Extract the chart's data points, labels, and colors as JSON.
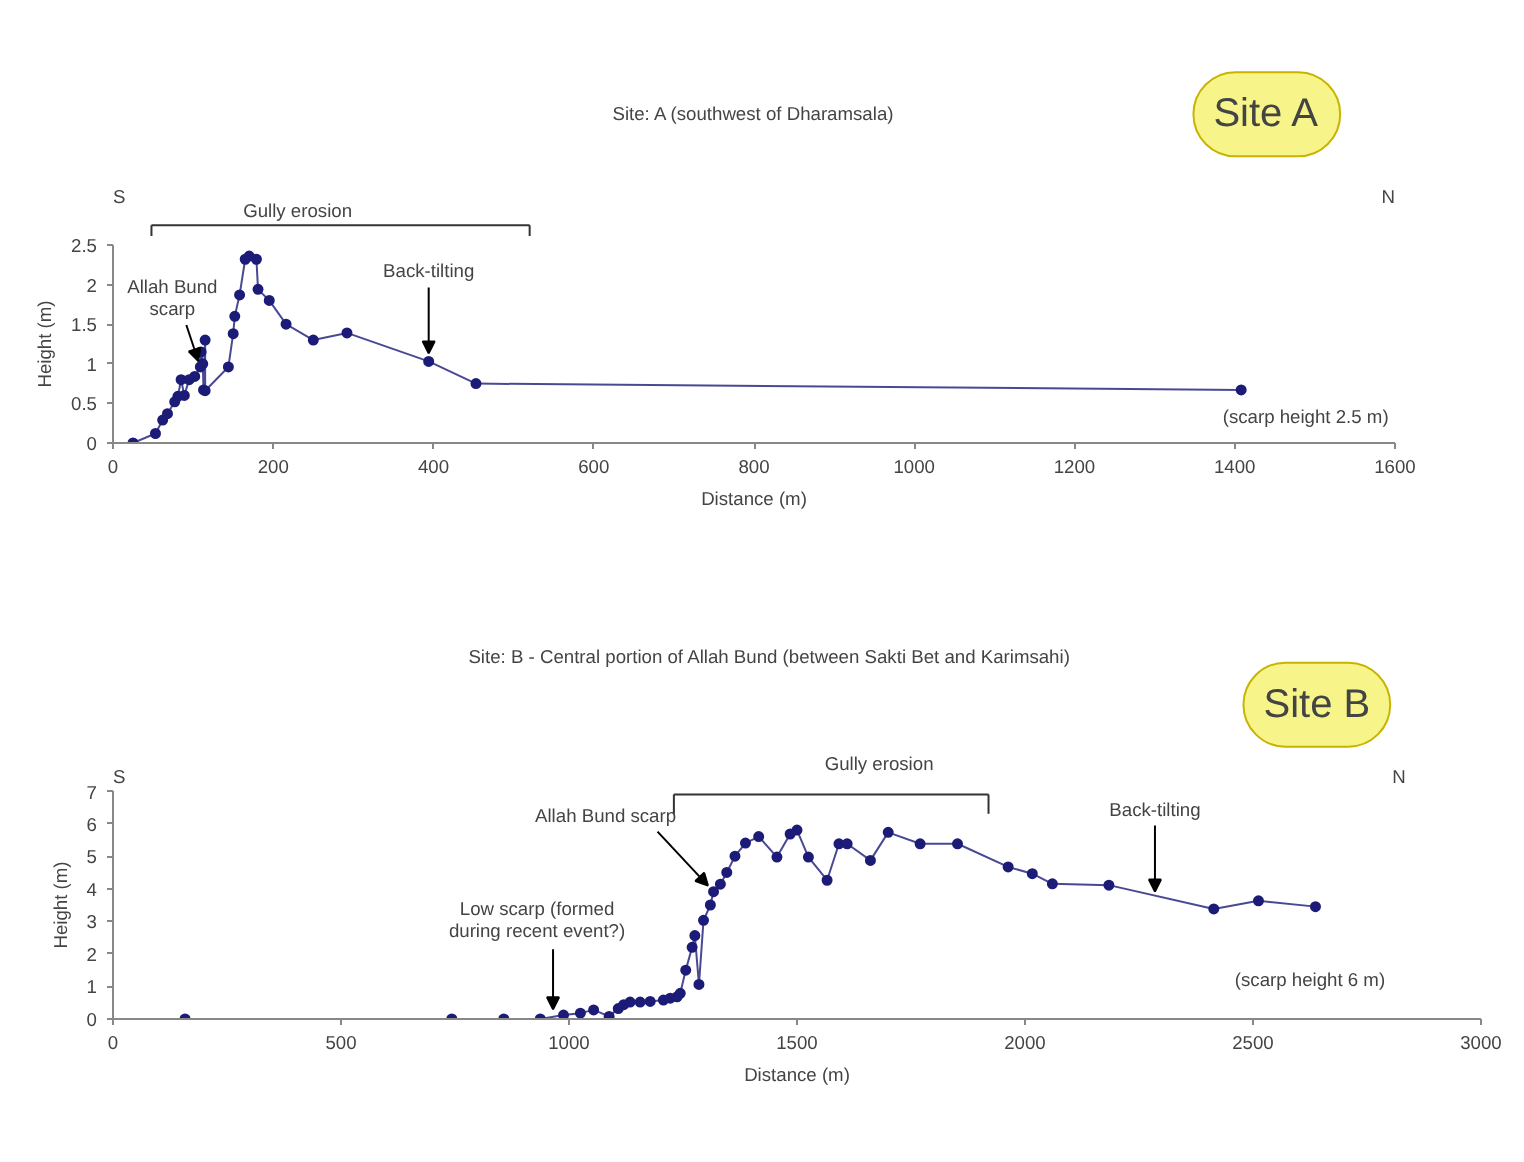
{
  "chart_data": [
    {
      "type": "line",
      "title": "Site: A (southwest of Dharamsala)",
      "xlabel": "Distance (m)",
      "ylabel": "Height (m)",
      "xlim": [
        0,
        1600
      ],
      "xticks": [
        0,
        200,
        400,
        600,
        800,
        1000,
        1200,
        1400,
        1600
      ],
      "ylim": [
        0,
        2.5
      ],
      "yticks": [
        0,
        0.5,
        1,
        1.5,
        2,
        2.5
      ],
      "grid": false,
      "marker": "circle",
      "line_style": "solid",
      "series": [
        {
          "color": "#1c1c78",
          "x": [
            25,
            53,
            62,
            68,
            77,
            81,
            85,
            89,
            95,
            102,
            109,
            110,
            112,
            113,
            115,
            115,
            144,
            150,
            152,
            158,
            165,
            170,
            179,
            181,
            195,
            216,
            250,
            292,
            394,
            453,
            1408
          ],
          "values": [
            0,
            0.12,
            0.29,
            0.37,
            0.52,
            0.59,
            0.8,
            0.6,
            0.8,
            0.84,
            0.96,
            1.15,
            1.0,
            0.67,
            1.3,
            0.66,
            0.96,
            1.38,
            1.6,
            1.87,
            2.32,
            2.36,
            2.32,
            1.94,
            1.8,
            1.5,
            1.3,
            1.39,
            1.03,
            0.75,
            0.67
          ]
        }
      ],
      "annotations": [
        "S",
        "N",
        "Site A",
        "Gully erosion",
        "(scarp height 2.5 m)",
        {
          "text": "Allah Bund\nscarp",
          "x": 109,
          "y": 0.96
        },
        {
          "text": "Back-tilting",
          "x": 394,
          "y": 1.03
        }
      ]
    },
    {
      "type": "line",
      "title": "Site: B - Central portion of Allah Bund (between Sakti Bet and Karimsahi)",
      "xlabel": "Distance (m)",
      "ylabel": "Height (m)",
      "xlim": [
        0,
        3000
      ],
      "xticks": [
        0,
        500,
        1000,
        1500,
        2000,
        2500,
        3000
      ],
      "ylim": [
        0,
        7
      ],
      "yticks": [
        0,
        1,
        2,
        3,
        4,
        5,
        6,
        7
      ],
      "grid": false,
      "marker": "circle",
      "line_style": "solid",
      "series": [
        {
          "color": "#1c1c78",
          "x": [
            158,
            743,
            857,
            937,
            988,
            1025,
            1054,
            1088,
            1108,
            1120,
            1134,
            1156,
            1178,
            1207,
            1222,
            1237,
            1244,
            1256,
            1270,
            1276,
            1285,
            1295,
            1310,
            1317,
            1332,
            1346,
            1364,
            1387,
            1416,
            1456,
            1485,
            1500,
            1525,
            1566,
            1592,
            1610,
            1661,
            1700,
            1770,
            1852,
            1963,
            2016,
            2060,
            2184,
            2414,
            2512,
            2637
          ],
          "values": [
            0,
            0,
            0,
            0,
            0.12,
            0.18,
            0.28,
            0.08,
            0.32,
            0.44,
            0.52,
            0.52,
            0.54,
            0.58,
            0.64,
            0.68,
            0.79,
            1.5,
            2.2,
            2.56,
            1.06,
            3.03,
            3.5,
            3.91,
            4.14,
            4.5,
            5.0,
            5.4,
            5.6,
            4.97,
            5.68,
            5.8,
            4.97,
            4.26,
            5.38,
            5.38,
            4.87,
            5.73,
            5.38,
            5.38,
            4.67,
            4.46,
            4.15,
            4.11,
            3.38,
            3.63,
            3.45
          ]
        }
      ],
      "annotations": [
        "S",
        "N",
        "Site B",
        "Gully erosion",
        "(scarp height 6 m)",
        {
          "text": "Low scarp (formed\nduring recent event?)",
          "x": 965,
          "y": 0.05
        },
        {
          "text": "Allah Bund scarp",
          "x": 1317,
          "y": 3.91
        },
        {
          "text": "Back-tilting",
          "x": 2285,
          "y": 3.79
        }
      ]
    }
  ]
}
